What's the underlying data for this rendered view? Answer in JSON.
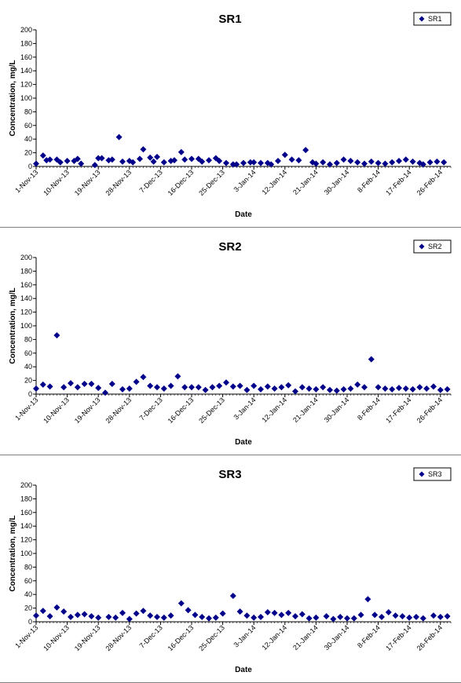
{
  "chart_data": [
    {
      "type": "scatter",
      "title": "SR1",
      "xlabel": "Date",
      "ylabel": "Concentration, mg/L",
      "ylim": [
        0,
        200
      ],
      "yticks": [
        "0",
        "20",
        "40",
        "60",
        "80",
        "100",
        "120",
        "140",
        "160",
        "180",
        "200"
      ],
      "xlim": [
        "2013-11-01",
        "2014-03-01"
      ],
      "xticks": [
        "1-Nov-13",
        "10-Nov-13",
        "19-Nov-13",
        "28-Nov-13",
        "7-Dec-13",
        "16-Dec-13",
        "25-Dec-13",
        "3-Jan-14",
        "12-Jan-14",
        "21-Jan-14",
        "30-Jan-14",
        "8-Feb-14",
        "17-Feb-14",
        "26-Feb-14"
      ],
      "grid": false,
      "legend_position": "top-right",
      "series": [
        {
          "name": "SR1",
          "color": "#00008B",
          "marker": "diamond",
          "x": [
            "2013-11-01",
            "2013-11-03",
            "2013-11-04",
            "2013-11-05",
            "2013-11-07",
            "2013-11-08",
            "2013-11-10",
            "2013-11-12",
            "2013-11-13",
            "2013-11-14",
            "2013-11-18",
            "2013-11-19",
            "2013-11-20",
            "2013-11-22",
            "2013-11-23",
            "2013-11-25",
            "2013-11-26",
            "2013-11-28",
            "2013-11-29",
            "2013-12-01",
            "2013-12-02",
            "2013-12-04",
            "2013-12-05",
            "2013-12-06",
            "2013-12-08",
            "2013-12-10",
            "2013-12-11",
            "2013-12-13",
            "2013-12-14",
            "2013-12-16",
            "2013-12-18",
            "2013-12-19",
            "2013-12-21",
            "2013-12-23",
            "2013-12-24",
            "2013-12-26",
            "2013-12-28",
            "2013-12-29",
            "2013-12-31",
            "2014-01-02",
            "2014-01-03",
            "2014-01-05",
            "2014-01-07",
            "2014-01-08",
            "2014-01-10",
            "2014-01-12",
            "2014-01-14",
            "2014-01-16",
            "2014-01-18",
            "2014-01-20",
            "2014-01-21",
            "2014-01-23",
            "2014-01-25",
            "2014-01-27",
            "2014-01-29",
            "2014-01-31",
            "2014-02-02",
            "2014-02-04",
            "2014-02-06",
            "2014-02-08",
            "2014-02-10",
            "2014-02-12",
            "2014-02-14",
            "2014-02-16",
            "2014-02-18",
            "2014-02-20",
            "2014-02-21",
            "2014-02-23",
            "2014-02-25",
            "2014-02-27"
          ],
          "y": [
            4,
            16,
            9,
            10,
            10,
            6,
            8,
            8,
            11,
            4,
            2,
            12,
            12,
            9,
            10,
            43,
            7,
            8,
            6,
            11,
            25,
            13,
            7,
            14,
            6,
            8,
            9,
            21,
            10,
            11,
            11,
            7,
            9,
            12,
            8,
            5,
            3,
            3,
            5,
            6,
            6,
            5,
            5,
            3,
            8,
            17,
            10,
            9,
            24,
            6,
            4,
            6,
            3,
            5,
            10,
            8,
            6,
            4,
            7,
            5,
            4,
            6,
            8,
            10,
            7,
            5,
            3,
            6,
            7,
            6
          ]
        }
      ]
    },
    {
      "type": "scatter",
      "title": "SR2",
      "xlabel": "Date",
      "ylabel": "Concentration, mg/L",
      "ylim": [
        0,
        200
      ],
      "yticks": [
        "0",
        "20",
        "40",
        "60",
        "80",
        "100",
        "120",
        "140",
        "160",
        "180",
        "200"
      ],
      "xlim": [
        "2013-11-01",
        "2014-03-01"
      ],
      "xticks": [
        "1-Nov-13",
        "10-Nov-13",
        "19-Nov-13",
        "28-Nov-13",
        "7-Dec-13",
        "16-Dec-13",
        "25-Dec-13",
        "3-Jan-14",
        "12-Jan-14",
        "21-Jan-14",
        "30-Jan-14",
        "8-Feb-14",
        "17-Feb-14",
        "26-Feb-14"
      ],
      "grid": false,
      "legend_position": "top-right",
      "series": [
        {
          "name": "SR2",
          "color": "#00008B",
          "marker": "diamond",
          "x": [
            "2013-11-01",
            "2013-11-03",
            "2013-11-05",
            "2013-11-07",
            "2013-11-09",
            "2013-11-11",
            "2013-11-13",
            "2013-11-15",
            "2013-11-17",
            "2013-11-19",
            "2013-11-21",
            "2013-11-23",
            "2013-11-26",
            "2013-11-28",
            "2013-11-30",
            "2013-12-02",
            "2013-12-04",
            "2013-12-06",
            "2013-12-08",
            "2013-12-10",
            "2013-12-12",
            "2013-12-14",
            "2013-12-16",
            "2013-12-18",
            "2013-12-20",
            "2013-12-22",
            "2013-12-24",
            "2013-12-26",
            "2013-12-28",
            "2013-12-30",
            "2014-01-01",
            "2014-01-03",
            "2014-01-05",
            "2014-01-07",
            "2014-01-09",
            "2014-01-11",
            "2014-01-13",
            "2014-01-15",
            "2014-01-17",
            "2014-01-19",
            "2014-01-21",
            "2014-01-23",
            "2014-01-25",
            "2014-01-27",
            "2014-01-29",
            "2014-01-31",
            "2014-02-02",
            "2014-02-04",
            "2014-02-06",
            "2014-02-08",
            "2014-02-10",
            "2014-02-12",
            "2014-02-14",
            "2014-02-16",
            "2014-02-18",
            "2014-02-20",
            "2014-02-22",
            "2014-02-24",
            "2014-02-26",
            "2014-02-28"
          ],
          "y": [
            8,
            14,
            11,
            86,
            10,
            16,
            10,
            15,
            15,
            9,
            2,
            15,
            7,
            8,
            18,
            25,
            12,
            10,
            8,
            12,
            26,
            10,
            10,
            10,
            6,
            10,
            12,
            17,
            11,
            12,
            6,
            12,
            7,
            11,
            8,
            10,
            13,
            4,
            10,
            8,
            7,
            10,
            6,
            5,
            7,
            8,
            14,
            10,
            51,
            10,
            8,
            7,
            9,
            8,
            7,
            10,
            8,
            11,
            6,
            7
          ]
        }
      ]
    },
    {
      "type": "scatter",
      "title": "SR3",
      "xlabel": "Date",
      "ylabel": "Concentration, mg/L",
      "ylim": [
        0,
        200
      ],
      "yticks": [
        "0",
        "20",
        "40",
        "60",
        "80",
        "100",
        "120",
        "140",
        "160",
        "180",
        "200"
      ],
      "xlim": [
        "2013-11-01",
        "2014-03-01"
      ],
      "xticks": [
        "1-Nov-13",
        "10-Nov-13",
        "19-Nov-13",
        "28-Nov-13",
        "7-Dec-13",
        "16-Dec-13",
        "25-Dec-13",
        "3-Jan-14",
        "12-Jan-14",
        "21-Jan-14",
        "30-Jan-14",
        "8-Feb-14",
        "17-Feb-14",
        "26-Feb-14"
      ],
      "grid": false,
      "legend_position": "top-right",
      "series": [
        {
          "name": "SR3",
          "color": "#00008B",
          "marker": "diamond",
          "x": [
            "2013-11-01",
            "2013-11-03",
            "2013-11-05",
            "2013-11-07",
            "2013-11-09",
            "2013-11-11",
            "2013-11-13",
            "2013-11-15",
            "2013-11-17",
            "2013-11-19",
            "2013-11-22",
            "2013-11-24",
            "2013-11-26",
            "2013-11-28",
            "2013-11-30",
            "2013-12-02",
            "2013-12-04",
            "2013-12-06",
            "2013-12-08",
            "2013-12-10",
            "2013-12-13",
            "2013-12-15",
            "2013-12-17",
            "2013-12-19",
            "2013-12-21",
            "2013-12-23",
            "2013-12-25",
            "2013-12-28",
            "2013-12-30",
            "2014-01-01",
            "2014-01-03",
            "2014-01-05",
            "2014-01-07",
            "2014-01-09",
            "2014-01-11",
            "2014-01-13",
            "2014-01-15",
            "2014-01-17",
            "2014-01-19",
            "2014-01-21",
            "2014-01-24",
            "2014-01-26",
            "2014-01-28",
            "2014-01-30",
            "2014-02-01",
            "2014-02-03",
            "2014-02-05",
            "2014-02-07",
            "2014-02-09",
            "2014-02-11",
            "2014-02-13",
            "2014-02-15",
            "2014-02-17",
            "2014-02-19",
            "2014-02-21",
            "2014-02-24",
            "2014-02-26",
            "2014-02-28"
          ],
          "y": [
            9,
            16,
            8,
            21,
            15,
            7,
            10,
            11,
            8,
            6,
            7,
            6,
            13,
            4,
            12,
            16,
            9,
            7,
            6,
            9,
            27,
            17,
            10,
            7,
            5,
            6,
            12,
            38,
            15,
            9,
            6,
            7,
            14,
            13,
            10,
            13,
            8,
            11,
            5,
            6,
            8,
            4,
            7,
            5,
            5,
            10,
            33,
            10,
            7,
            14,
            9,
            8,
            6,
            7,
            5,
            9,
            7,
            8
          ]
        }
      ]
    }
  ]
}
